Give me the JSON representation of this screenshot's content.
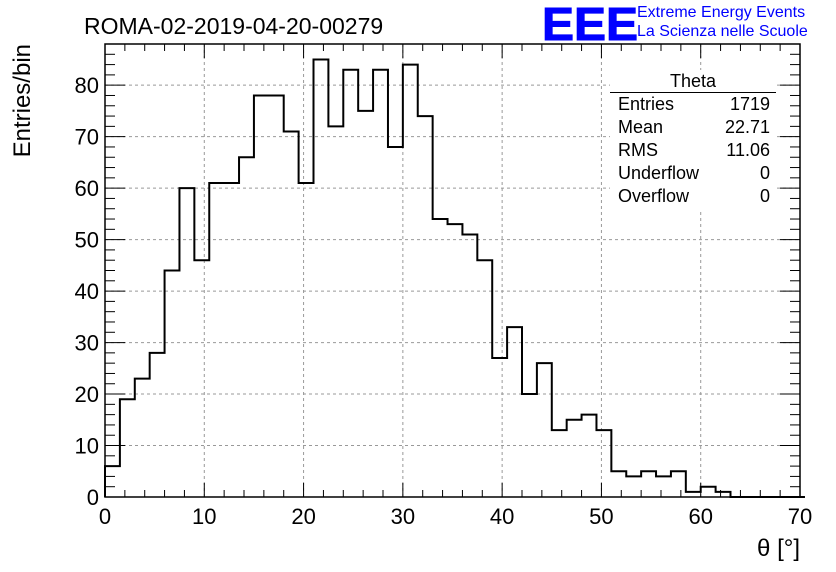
{
  "run_title": "ROMA-02-2019-04-20-00279",
  "logo": {
    "letters": "EEE",
    "line1": "Extreme Energy Events",
    "line2": "La Scienza nelle Scuole",
    "color": "#0000ff"
  },
  "stats": {
    "title": "Theta",
    "rows": [
      {
        "label": "Entries",
        "value": "1719"
      },
      {
        "label": "Mean",
        "value": "22.71"
      },
      {
        "label": "RMS",
        "value": "11.06"
      },
      {
        "label": "Underflow",
        "value": "0"
      },
      {
        "label": "Overflow",
        "value": "0"
      }
    ]
  },
  "chart_data": {
    "type": "histogram",
    "title": "ROMA-02-2019-04-20-00279",
    "xlabel": "θ [°]",
    "ylabel": "Entries/bin",
    "xlim": [
      0,
      70
    ],
    "ylim": [
      0,
      88
    ],
    "grid": true,
    "legend": "top-right",
    "bin_width": 1.5,
    "bin_start": 0,
    "values": [
      6,
      19,
      23,
      28,
      44,
      60,
      46,
      61,
      61,
      66,
      78,
      78,
      71,
      61,
      85,
      72,
      83,
      75,
      83,
      68,
      84,
      74,
      54,
      53,
      51,
      46,
      27,
      33,
      20,
      26,
      13,
      15,
      16,
      13,
      5,
      4,
      5,
      4,
      5,
      1,
      2,
      1,
      0,
      0,
      0,
      0,
      0
    ],
    "x_ticks": [
      "0",
      "10",
      "20",
      "30",
      "40",
      "50",
      "60",
      "70"
    ],
    "y_ticks": [
      "0",
      "10",
      "20",
      "30",
      "40",
      "50",
      "60",
      "70",
      "80"
    ]
  }
}
